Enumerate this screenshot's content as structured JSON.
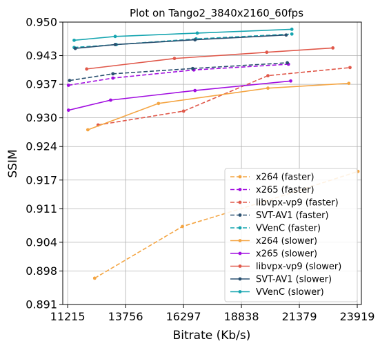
{
  "chart_data": {
    "type": "line",
    "title": "Plot on Tango2_3840x2160_60fps",
    "xlabel": "Bitrate (Kb/s)",
    "ylabel": "SSIM",
    "xlim": [
      11000,
      24100
    ],
    "ylim": [
      0.891,
      0.95
    ],
    "xticks": [
      "11215",
      "13756",
      "16297",
      "18838",
      "21379",
      "23919"
    ],
    "yticks": [
      "0.891",
      "0.898",
      "0.904",
      "0.911",
      "0.917",
      "0.924",
      "0.930",
      "0.937",
      "0.943",
      "0.950"
    ],
    "grid": true,
    "legend_position": "lower-right",
    "series": [
      {
        "name": "x264 (faster)",
        "color": "#f4a543",
        "dashed": true,
        "x": [
          12400,
          16250,
          19900,
          23950
        ],
        "y": [
          0.8965,
          0.9073,
          0.9126,
          0.9188
        ]
      },
      {
        "name": "x265 (faster)",
        "color": "#a10de0",
        "dashed": true,
        "x": [
          11250,
          13200,
          16750,
          20900
        ],
        "y": [
          0.9368,
          0.9383,
          0.94,
          0.9412
        ]
      },
      {
        "name": "libvpx-vp9 (faster)",
        "color": "#e0584a",
        "dashed": true,
        "x": [
          12550,
          16300,
          20000,
          23600
        ],
        "y": [
          0.9285,
          0.9314,
          0.9388,
          0.9405
        ]
      },
      {
        "name": "SVT-AV1 (faster)",
        "color": "#2a5070",
        "dashed": true,
        "x": [
          11300,
          13200,
          16700,
          20850
        ],
        "y": [
          0.9378,
          0.9392,
          0.9403,
          0.9415
        ]
      },
      {
        "name": "VVenC (faster)",
        "color": "#16a5b0",
        "dashed": true,
        "x": [
          11500,
          13350,
          16850,
          21050
        ],
        "y": [
          0.9447,
          0.9453,
          0.9465,
          0.9475
        ]
      },
      {
        "name": "x264 (slower)",
        "color": "#f4a543",
        "dashed": false,
        "x": [
          12100,
          15200,
          20000,
          23550
        ],
        "y": [
          0.9275,
          0.933,
          0.9362,
          0.9372
        ]
      },
      {
        "name": "x265 (slower)",
        "color": "#a10de0",
        "dashed": false,
        "x": [
          11250,
          13100,
          16800,
          21000
        ],
        "y": [
          0.9316,
          0.9337,
          0.9357,
          0.9377
        ]
      },
      {
        "name": "libvpx-vp9 (slower)",
        "color": "#e0584a",
        "dashed": false,
        "x": [
          12050,
          15900,
          19950,
          22850
        ],
        "y": [
          0.9402,
          0.9424,
          0.9437,
          0.9446
        ]
      },
      {
        "name": "SVT-AV1 (slower)",
        "color": "#2a5070",
        "dashed": false,
        "x": [
          11550,
          13300,
          16800,
          20800
        ],
        "y": [
          0.9445,
          0.9453,
          0.9463,
          0.9473
        ]
      },
      {
        "name": "VVenC (slower)",
        "color": "#16a5b0",
        "dashed": false,
        "x": [
          11500,
          13300,
          16900,
          21050
        ],
        "y": [
          0.9462,
          0.947,
          0.9477,
          0.9485
        ]
      }
    ]
  }
}
